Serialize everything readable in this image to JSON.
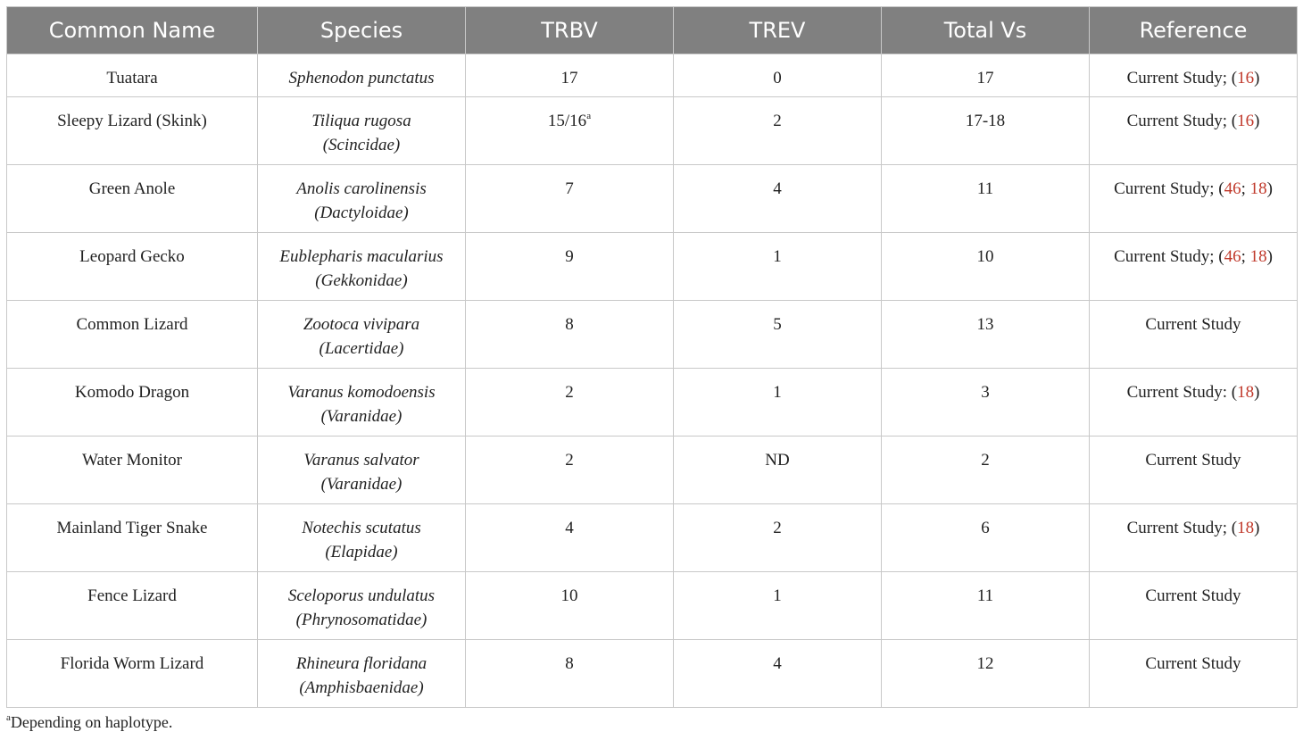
{
  "headers": [
    "Common Name",
    "Species",
    "TRBV",
    "TREV",
    "Total Vs",
    "Reference"
  ],
  "rows": [
    {
      "common": "Tuatara",
      "species": "Sphenodon punctatus",
      "family": "",
      "trbv": "17",
      "trbv_sup": "",
      "trev": "0",
      "total": "17",
      "ref": [
        {
          "t": "Current Study; (",
          "red": false
        },
        {
          "t": "16",
          "red": true
        },
        {
          "t": ")",
          "red": false
        }
      ]
    },
    {
      "common": "Sleepy Lizard (Skink)",
      "species": "Tiliqua rugosa",
      "family": "(Scincidae)",
      "trbv": "15/16",
      "trbv_sup": "a",
      "trev": "2",
      "total": "17-18",
      "ref": [
        {
          "t": "Current Study; (",
          "red": false
        },
        {
          "t": "16",
          "red": true
        },
        {
          "t": ")",
          "red": false
        }
      ]
    },
    {
      "common": "Green Anole",
      "species": "Anolis carolinensis",
      "family": "(Dactyloidae)",
      "trbv": "7",
      "trbv_sup": "",
      "trev": "4",
      "total": "11",
      "ref": [
        {
          "t": "Current Study; (",
          "red": false
        },
        {
          "t": "46",
          "red": true
        },
        {
          "t": "; ",
          "red": false
        },
        {
          "t": "18",
          "red": true
        },
        {
          "t": ")",
          "red": false
        }
      ]
    },
    {
      "common": "Leopard Gecko",
      "species": "Eublepharis macularius",
      "family": "(Gekkonidae)",
      "trbv": "9",
      "trbv_sup": "",
      "trev": "1",
      "total": "10",
      "ref": [
        {
          "t": "Current Study; (",
          "red": false
        },
        {
          "t": "46",
          "red": true
        },
        {
          "t": "; ",
          "red": false
        },
        {
          "t": "18",
          "red": true
        },
        {
          "t": ")",
          "red": false
        }
      ]
    },
    {
      "common": "Common Lizard",
      "species": "Zootoca vivipara",
      "family": "(Lacertidae)",
      "trbv": "8",
      "trbv_sup": "",
      "trev": "5",
      "total": "13",
      "ref": [
        {
          "t": "Current Study",
          "red": false
        }
      ]
    },
    {
      "common": "Komodo Dragon",
      "species": "Varanus komodoensis",
      "family": "(Varanidae)",
      "trbv": "2",
      "trbv_sup": "",
      "trev": "1",
      "total": "3",
      "ref": [
        {
          "t": "Current Study: (",
          "red": false
        },
        {
          "t": "18",
          "red": true
        },
        {
          "t": ")",
          "red": false
        }
      ]
    },
    {
      "common": "Water Monitor",
      "species": "Varanus salvator",
      "family": "(Varanidae)",
      "trbv": "2",
      "trbv_sup": "",
      "trev": "ND",
      "total": "2",
      "ref": [
        {
          "t": "Current Study",
          "red": false
        }
      ]
    },
    {
      "common": "Mainland Tiger Snake",
      "species": "Notechis scutatus",
      "family": "(Elapidae)",
      "trbv": "4",
      "trbv_sup": "",
      "trev": "2",
      "total": "6",
      "ref": [
        {
          "t": "Current Study; (",
          "red": false
        },
        {
          "t": "18",
          "red": true
        },
        {
          "t": ")",
          "red": false
        }
      ]
    },
    {
      "common": "Fence Lizard",
      "species": "Sceloporus undulatus",
      "family": "(Phrynosomatidae)",
      "trbv": "10",
      "trbv_sup": "",
      "trev": "1",
      "total": "11",
      "ref": [
        {
          "t": "Current Study",
          "red": false
        }
      ]
    },
    {
      "common": "Florida Worm Lizard",
      "species": "Rhineura floridana",
      "family": "(Amphisbaenidae)",
      "trbv": "8",
      "trbv_sup": "",
      "trev": "4",
      "total": "12",
      "ref": [
        {
          "t": "Current Study",
          "red": false
        }
      ]
    }
  ],
  "footnote": {
    "marker": "a",
    "text": "Depending on haplotype."
  },
  "colors": {
    "header_bg": "#808080",
    "header_text": "#ffffff",
    "ref_link": "#c0392b",
    "border": "#c8c8c8"
  }
}
